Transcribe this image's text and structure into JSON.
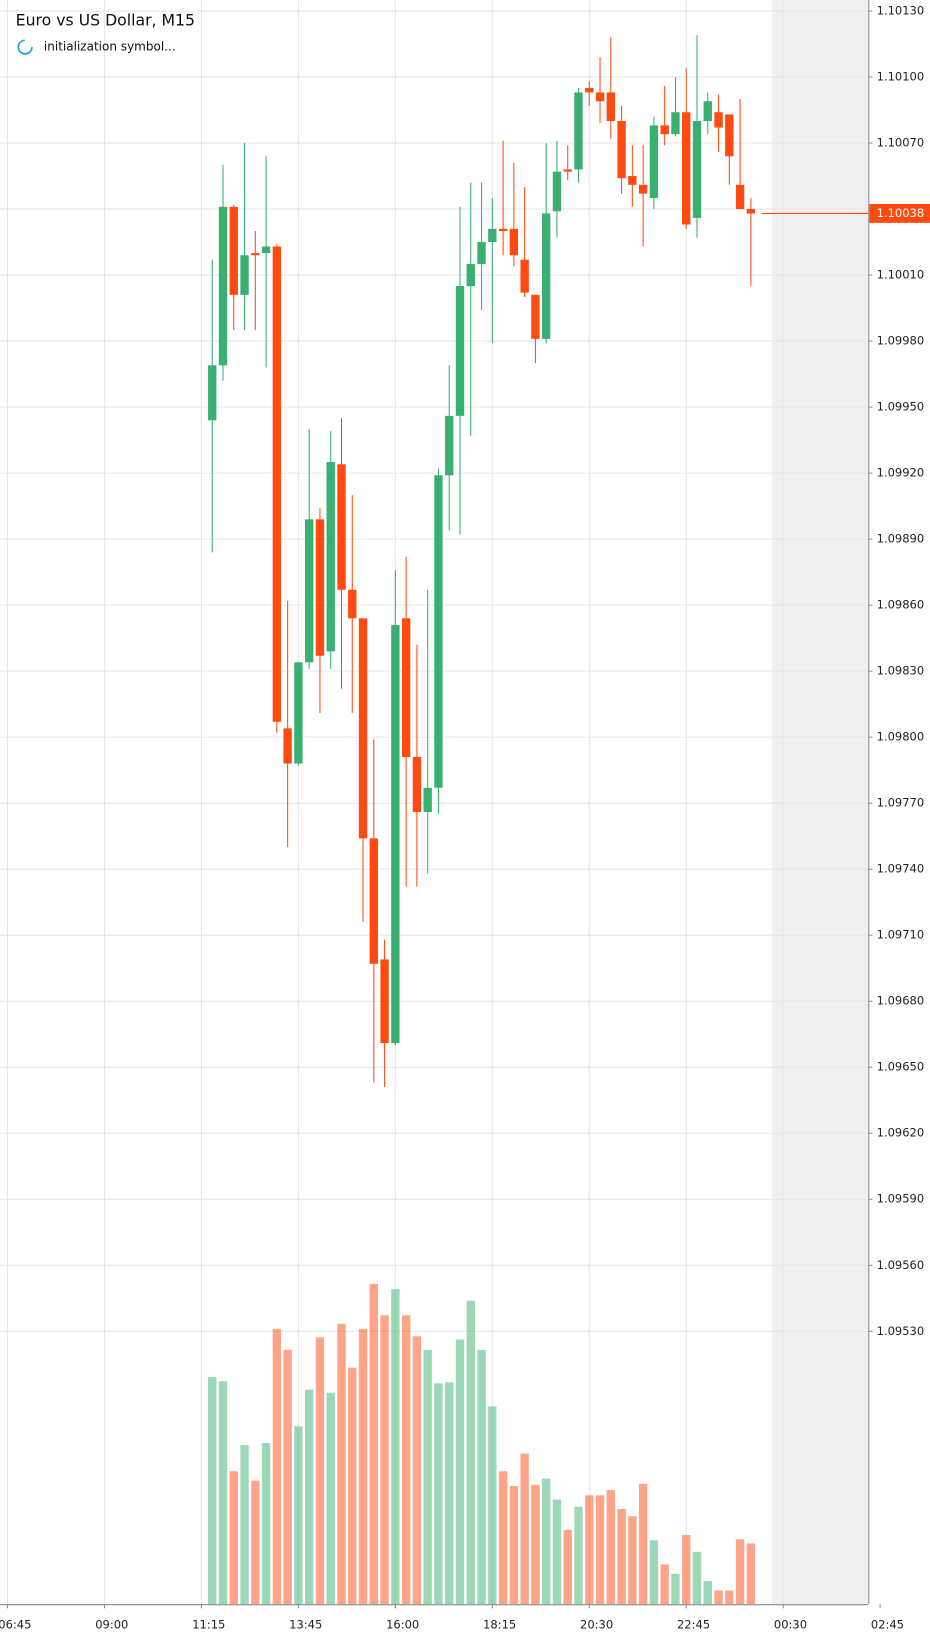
{
  "header": {
    "title": "Euro vs US Dollar, M15",
    "status": "initialization symbol..."
  },
  "chart_data": {
    "type": "candlestick",
    "up_color": "#3aaf72",
    "down_color": "#ff4a12",
    "grid": true,
    "ylim": [
      1.09406,
      1.10135
    ],
    "xlim": [
      -19.7,
      60.9
    ],
    "yticks": [
      {
        "value": 1.0953,
        "label": "1.09530"
      },
      {
        "value": 1.0956,
        "label": "1.09560"
      },
      {
        "value": 1.0959,
        "label": "1.09590"
      },
      {
        "value": 1.0962,
        "label": "1.09620"
      },
      {
        "value": 1.0965,
        "label": "1.09650"
      },
      {
        "value": 1.0968,
        "label": "1.09680"
      },
      {
        "value": 1.0971,
        "label": "1.09710"
      },
      {
        "value": 1.0974,
        "label": "1.09740"
      },
      {
        "value": 1.0977,
        "label": "1.09770"
      },
      {
        "value": 1.098,
        "label": "1.09800"
      },
      {
        "value": 1.0983,
        "label": "1.09830"
      },
      {
        "value": 1.0986,
        "label": "1.09860"
      },
      {
        "value": 1.0989,
        "label": "1.09890"
      },
      {
        "value": 1.0992,
        "label": "1.09920"
      },
      {
        "value": 1.0995,
        "label": "1.09950"
      },
      {
        "value": 1.0998,
        "label": "1.09980"
      },
      {
        "value": 1.1001,
        "label": "1.10010"
      },
      {
        "value": 1.1004,
        "label": "1.10040"
      },
      {
        "value": 1.1007,
        "label": "1.10070"
      },
      {
        "value": 1.101,
        "label": "1.10100"
      },
      {
        "value": 1.1013,
        "label": "1.10130"
      }
    ],
    "xticks": [
      {
        "value": -19,
        "label": "06:45"
      },
      {
        "value": -10,
        "label": "09:00"
      },
      {
        "value": -1,
        "label": "11:15"
      },
      {
        "value": 8,
        "label": "13:45"
      },
      {
        "value": 17,
        "label": "16:00"
      },
      {
        "value": 26,
        "label": "18:15"
      },
      {
        "value": 35,
        "label": "20:30"
      },
      {
        "value": 44,
        "label": "22:45"
      },
      {
        "value": 53,
        "label": "00:30"
      },
      {
        "value": 62,
        "label": "02:45"
      }
    ],
    "last_price": 1.10038,
    "open": [
      1.09944,
      1.09969,
      1.10041,
      1.10001,
      1.1002,
      1.1002,
      1.10023,
      1.09804,
      1.09788,
      1.09834,
      1.09899,
      1.09839,
      1.09924,
      1.09867,
      1.09854,
      1.09754,
      1.09699,
      1.09661,
      1.09854,
      1.09791,
      1.09766,
      1.09777,
      1.09919,
      1.09946,
      1.10005,
      1.10015,
      1.10025,
      1.10031,
      1.10031,
      1.10017,
      1.10001,
      1.09981,
      1.10039,
      1.10058,
      1.10058,
      1.10095,
      1.10093,
      1.10093,
      1.1008,
      1.10055,
      1.10051,
      1.10045,
      1.10078,
      1.10074,
      1.10084,
      1.10036,
      1.1008,
      1.10084,
      1.10083,
      1.10051,
      1.1004
    ],
    "high": [
      1.10017,
      1.1006,
      1.10042,
      1.1007,
      1.1003,
      1.10064,
      1.10024,
      1.09862,
      1.09834,
      1.0994,
      1.09904,
      1.09939,
      1.09945,
      1.0991,
      1.09854,
      1.09799,
      1.09708,
      1.09876,
      1.09882,
      1.09842,
      1.09867,
      1.09922,
      1.09969,
      1.10041,
      1.10052,
      1.10052,
      1.10045,
      1.10071,
      1.10061,
      1.1005,
      1.10001,
      1.1007,
      1.10071,
      1.10069,
      1.10095,
      1.10098,
      1.10109,
      1.10118,
      1.10087,
      1.10069,
      1.10069,
      1.10082,
      1.10096,
      1.101,
      1.10104,
      1.10119,
      1.10093,
      1.10092,
      1.10083,
      1.1009,
      1.10045
    ],
    "low": [
      1.09884,
      1.09962,
      1.09985,
      1.09985,
      1.09985,
      1.09968,
      1.09802,
      1.0975,
      1.09787,
      1.09831,
      1.09811,
      1.09831,
      1.09822,
      1.09811,
      1.09716,
      1.09643,
      1.09641,
      1.0966,
      1.09732,
      1.09732,
      1.09738,
      1.09765,
      1.09894,
      1.09892,
      1.09937,
      1.09994,
      1.09979,
      1.10019,
      1.10014,
      1.1,
      1.0997,
      1.09979,
      1.10027,
      1.10053,
      1.10052,
      1.10087,
      1.10079,
      1.10072,
      1.10047,
      1.10041,
      1.10023,
      1.1004,
      1.10069,
      1.10073,
      1.10031,
      1.10027,
      1.10074,
      1.10066,
      1.10051,
      1.1004,
      1.10005
    ],
    "close": [
      1.09969,
      1.10041,
      1.10001,
      1.10019,
      1.10019,
      1.10023,
      1.09807,
      1.09788,
      1.09834,
      1.09899,
      1.09837,
      1.09925,
      1.09867,
      1.09854,
      1.09754,
      1.09697,
      1.09661,
      1.09851,
      1.09791,
      1.09766,
      1.09777,
      1.09919,
      1.09946,
      1.10005,
      1.10015,
      1.10025,
      1.10031,
      1.1003,
      1.10019,
      1.10002,
      1.09981,
      1.10038,
      1.10057,
      1.10057,
      1.10093,
      1.10093,
      1.10089,
      1.1008,
      1.10054,
      1.10051,
      1.10047,
      1.10078,
      1.10074,
      1.10084,
      1.10033,
      1.1008,
      1.10089,
      1.10077,
      1.10064,
      1.1004,
      1.10038
    ],
    "volume": [
      217,
      213,
      127,
      152,
      118,
      154,
      263,
      243,
      170,
      205,
      255,
      202,
      268,
      226,
      263,
      306,
      276,
      301,
      276,
      256,
      243,
      211,
      212,
      253,
      290,
      243,
      189,
      127,
      113,
      144,
      114,
      120,
      100,
      71,
      93,
      104,
      104,
      109,
      91,
      84,
      115,
      61,
      38,
      29,
      66,
      50,
      22,
      13,
      13,
      62,
      58
    ]
  }
}
